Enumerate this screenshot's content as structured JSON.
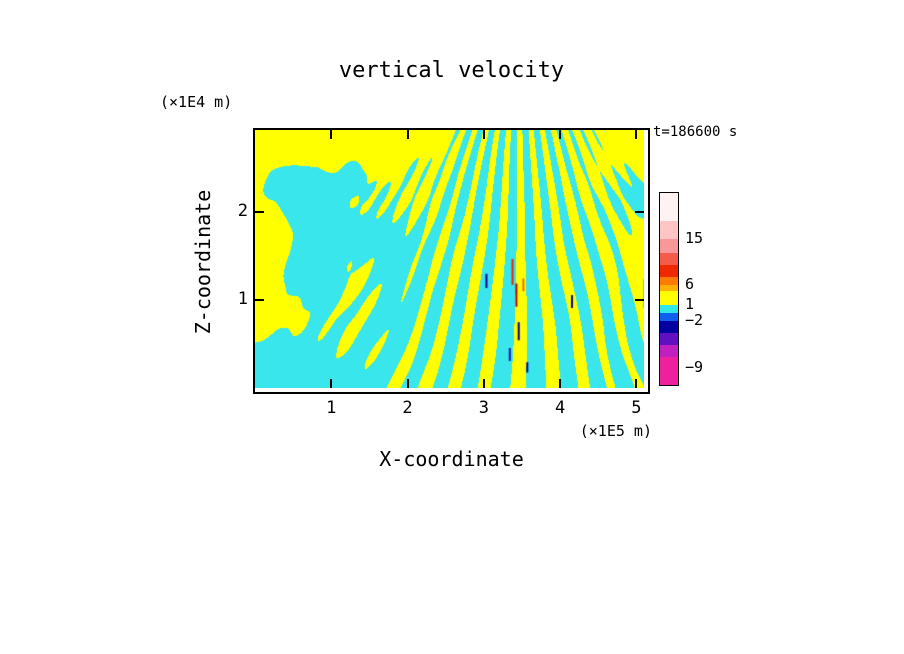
{
  "page": {
    "background": "#FFFFFF"
  },
  "chart_data": {
    "type": "heatmap",
    "field": "vertical velocity",
    "title": "vertical velocity",
    "time_label": "t=186600 s",
    "xlabel": "X-coordinate",
    "ylabel": "Z-coordinate",
    "x_unit_label": "(×1E5 m)",
    "y_unit_label": "(×1E4 m)",
    "x_ticks": [
      1,
      2,
      3,
      4,
      5
    ],
    "y_ticks": [
      1,
      2
    ],
    "xlim": [
      0,
      5.1
    ],
    "ylim": [
      0,
      2.93
    ],
    "grid": false,
    "legend_position": "right-colorbar",
    "field_colors": {
      "negative_fill": "#38E6EC",
      "positive_fill": "#FFFF00"
    },
    "value_band_mapping": {
      "cyan": "-2 to 1",
      "yellow": "1 to 6"
    },
    "colorbar": {
      "labels": [
        {
          "text": "15",
          "offset": 46
        },
        {
          "text": "6",
          "offset": 92
        },
        {
          "text": "1",
          "offset": 112
        },
        {
          "text": "−2",
          "offset": 128
        },
        {
          "text": "−9",
          "offset": 175
        }
      ],
      "segments": [
        {
          "color": "#FFF2F2",
          "h": 28
        },
        {
          "color": "#FFC4C4",
          "h": 18
        },
        {
          "color": "#F89898",
          "h": 14
        },
        {
          "color": "#F45B4B",
          "h": 12
        },
        {
          "color": "#F02800",
          "h": 12
        },
        {
          "color": "#FF7A00",
          "h": 8
        },
        {
          "color": "#FFB000",
          "h": 6
        },
        {
          "color": "#FFFF00",
          "h": 14
        },
        {
          "color": "#30E8E8",
          "h": 8
        },
        {
          "color": "#1060F0",
          "h": 8
        },
        {
          "color": "#0000A0",
          "h": 12
        },
        {
          "color": "#6010C0",
          "h": 12
        },
        {
          "color": "#C020C0",
          "h": 12
        },
        {
          "color": "#EE20A0",
          "h": 28
        }
      ]
    },
    "extremes": [
      {
        "x": 0.595,
        "y": 0.585,
        "len": 0.055,
        "color": "#000099"
      },
      {
        "x": 0.662,
        "y": 0.55,
        "len": 0.1,
        "color": "#EE2200"
      },
      {
        "x": 0.672,
        "y": 0.64,
        "len": 0.09,
        "color": "#BB0000"
      },
      {
        "x": 0.678,
        "y": 0.78,
        "len": 0.07,
        "color": "#000099"
      },
      {
        "x": 0.69,
        "y": 0.6,
        "len": 0.05,
        "color": "#FF6600"
      },
      {
        "x": 0.655,
        "y": 0.87,
        "len": 0.05,
        "color": "#1111AA"
      },
      {
        "x": 0.7,
        "y": 0.92,
        "len": 0.04,
        "color": "#000099"
      },
      {
        "x": 0.815,
        "y": 0.665,
        "len": 0.05,
        "color": "#000099"
      }
    ],
    "pattern": {
      "fan_center_x": 0.675,
      "threshold": 0.58,
      "seed": 7
    }
  }
}
